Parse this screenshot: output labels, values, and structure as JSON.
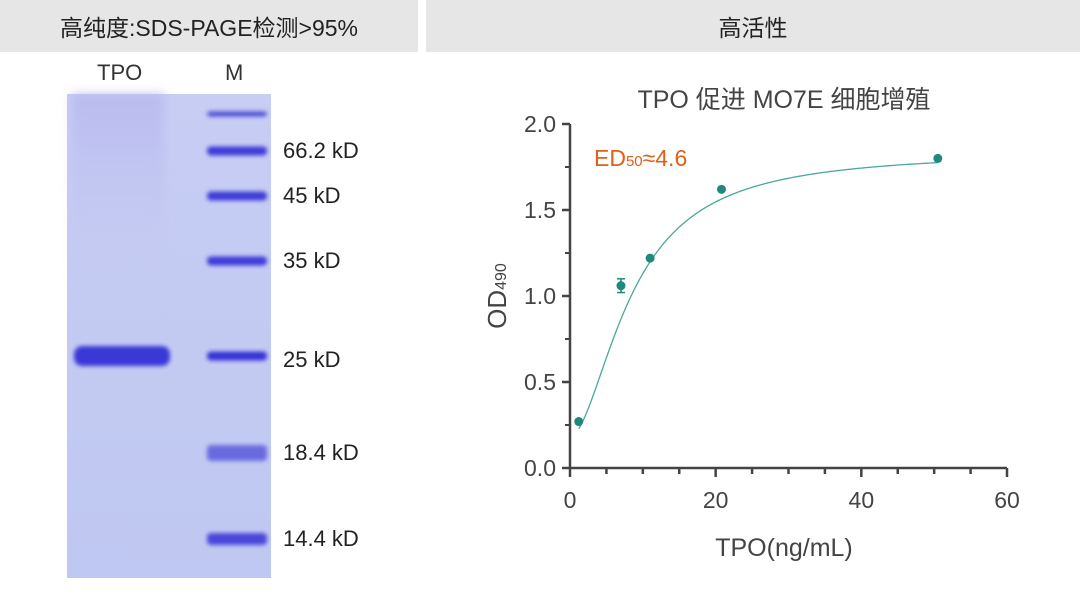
{
  "headers": {
    "left": "高纯度:SDS-PAGE检测>95%",
    "right": "高活性"
  },
  "gel": {
    "lane_labels": [
      "TPO",
      "M"
    ],
    "markers": [
      {
        "label": "66.2 kD"
      },
      {
        "label": "45 kD"
      },
      {
        "label": "35 kD"
      },
      {
        "label": "25 kD"
      },
      {
        "label": "18.4 kD"
      },
      {
        "label": "14.4 kD"
      }
    ]
  },
  "chart_data": {
    "type": "scatter",
    "title": "TPO 促进 MO7E 细胞增殖",
    "xlabel": "TPO(ng/mL)",
    "ylabel_main": "OD",
    "ylabel_sub": "490",
    "xlim": [
      0,
      60
    ],
    "ylim": [
      0.0,
      2.0
    ],
    "xticks": [
      0,
      20,
      40,
      60
    ],
    "yticks": [
      0.0,
      0.5,
      1.0,
      1.5,
      2.0
    ],
    "ytick_labels": [
      "0.0",
      "0.5",
      "1.0",
      "1.5",
      "2.0"
    ],
    "points": [
      {
        "x": 1.2,
        "y": 0.27,
        "err": 0.0
      },
      {
        "x": 7.0,
        "y": 1.06,
        "err": 0.04
      },
      {
        "x": 11.0,
        "y": 1.22,
        "err": 0.0
      },
      {
        "x": 20.8,
        "y": 1.62,
        "err": 0.0
      },
      {
        "x": 50.5,
        "y": 1.8,
        "err": 0.0
      }
    ],
    "annotation_main": "ED",
    "annotation_sub": "50",
    "annotation_rest": "≈4.6",
    "ed50": 4.6,
    "colors": {
      "points": "#1f8a7a",
      "curve": "#4aa89a",
      "annotation": "#e0601a"
    }
  }
}
